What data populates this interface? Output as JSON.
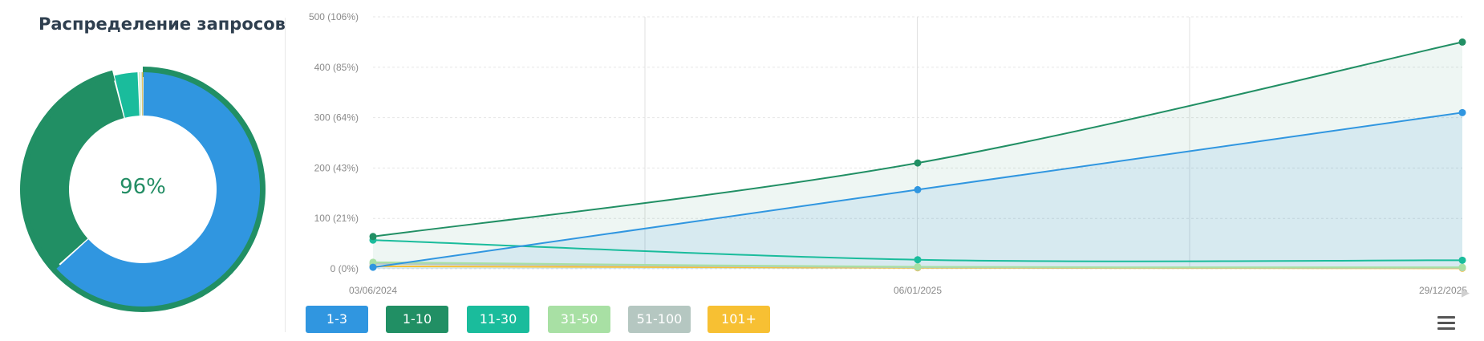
{
  "donut": {
    "title": "Распределение запросов",
    "center_label": "96%",
    "segments": [
      {
        "name": "1-3",
        "value": 0.633,
        "color": "#3096e0"
      },
      {
        "name": "1-10",
        "value": 0.327,
        "color": "#218f64"
      },
      {
        "name": "11-30",
        "value": 0.034,
        "color": "#1abc9c"
      },
      {
        "name": "31-50",
        "value": 0.003,
        "color": "#a8e0a4"
      },
      {
        "name": "51-100",
        "value": 0.001,
        "color": "#b5c7c1"
      },
      {
        "name": "101+",
        "value": 0.002,
        "color": "#f7c033"
      }
    ],
    "outer_ring_value": 0.96,
    "outer_ring_color": "#218f64"
  },
  "chart_data": {
    "type": "line",
    "x": [
      "03/06/2024",
      "06/01/2025",
      "29/12/2025"
    ],
    "y_ticks": [
      "0 (0%)",
      "100 (21%)",
      "200 (43%)",
      "300 (64%)",
      "400 (85%)",
      "500 (106%)"
    ],
    "ylim": [
      0,
      500
    ],
    "grid": true,
    "series": [
      {
        "name": "1-3",
        "color": "#3096e0",
        "area": true,
        "values": [
          3,
          157,
          310
        ]
      },
      {
        "name": "1-10",
        "color": "#218f64",
        "area": true,
        "values": [
          64,
          210,
          450
        ]
      },
      {
        "name": "11-30",
        "color": "#1abc9c",
        "area": false,
        "values": [
          57,
          18,
          17
        ]
      },
      {
        "name": "31-50",
        "color": "#a8e0a4",
        "area": false,
        "values": [
          13,
          4,
          3
        ]
      },
      {
        "name": "51-100",
        "color": "#b5c7c1",
        "area": false,
        "values": [
          10,
          3,
          2
        ]
      },
      {
        "name": "101+",
        "color": "#f7c033",
        "area": false,
        "values": [
          5,
          2,
          1
        ]
      }
    ]
  },
  "legend": {
    "items": [
      {
        "label": "1-3",
        "color": "#3096e0"
      },
      {
        "label": "1-10",
        "color": "#218f64"
      },
      {
        "label": "11-30",
        "color": "#1abc9c"
      },
      {
        "label": "31-50",
        "color": "#a8e0a4"
      },
      {
        "label": "51-100",
        "color": "#b5c7c1"
      },
      {
        "label": "101+",
        "color": "#f7c033"
      }
    ]
  },
  "icons": {
    "menu": "hamburger-menu-icon"
  }
}
